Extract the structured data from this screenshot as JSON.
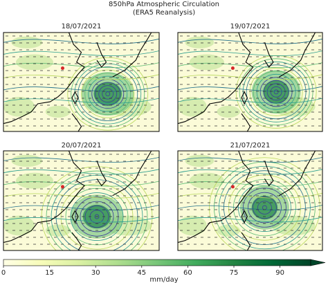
{
  "title": "850hPa Atmospheric Circulation",
  "subtitle": "(ERA5 Reanalysis)",
  "panels": [
    {
      "title": "18/07/2021"
    },
    {
      "title": "19/07/2021"
    },
    {
      "title": "20/07/2021"
    },
    {
      "title": "21/07/2021"
    }
  ],
  "colorbar": {
    "label": "mm/day",
    "lim": [
      0,
      100
    ],
    "ticks": [
      0,
      15,
      30,
      45,
      60,
      75,
      90
    ],
    "colors": [
      "#ffffe5",
      "#f7fcb9",
      "#d9f0a3",
      "#addd8e",
      "#78c679",
      "#41ab5d",
      "#238443",
      "#006837",
      "#004529"
    ]
  }
}
